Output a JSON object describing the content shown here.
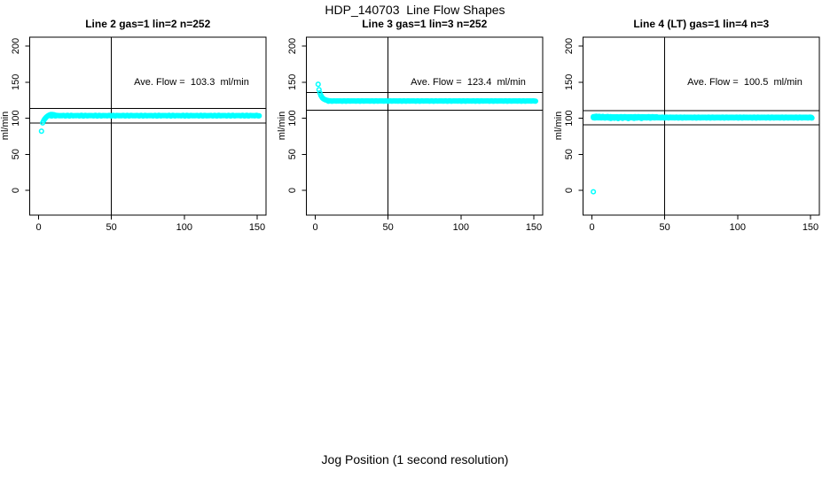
{
  "page": {
    "main_title": "HDP_140703  Line Flow Shapes",
    "x_axis_label": "Jog Position (1 second resolution)"
  },
  "colors": {
    "points": "#00FFFF",
    "axis": "#000000",
    "background": "#FFFFFF",
    "text": "#000000"
  },
  "chart_data": [
    {
      "type": "scatter",
      "title": "Line 2 gas=1 lin=2 n=252",
      "annotation": "Ave. Flow =  103.3  ml/min",
      "ave_flow": 103.3,
      "n": 252,
      "ylabel": "ml/min",
      "xticks": [
        0,
        50,
        100,
        150
      ],
      "yticks": [
        0,
        50,
        100,
        150,
        200
      ],
      "xlim": [
        -6,
        156
      ],
      "ylim": [
        -34,
        212
      ],
      "vline_x": 50,
      "hlines": [
        113.6,
        93.0
      ],
      "points": [
        [
          2,
          82
        ],
        [
          2.8,
          93.5
        ],
        [
          3.4,
          96.2
        ],
        [
          4,
          98.2
        ],
        [
          4.6,
          99.8
        ],
        [
          5.2,
          101.2
        ],
        [
          5.8,
          102.3
        ],
        [
          6.4,
          103.2
        ],
        [
          7,
          104
        ],
        [
          7.6,
          104.6
        ],
        [
          8.4,
          105.1
        ],
        [
          9.4,
          105.2
        ],
        [
          10.5,
          104.8
        ],
        [
          11.5,
          104.3
        ]
      ],
      "bands": [
        {
          "x_from": 8,
          "x_to": 151.5,
          "y": 103.5,
          "step": 0.6,
          "wobble": 0.9
        }
      ]
    },
    {
      "type": "scatter",
      "title": "Line 3 gas=1 lin=3 n=252",
      "annotation": "Ave. Flow =  123.4  ml/min",
      "ave_flow": 123.4,
      "n": 252,
      "ylabel": "ml/min",
      "xticks": [
        0,
        50,
        100,
        150
      ],
      "yticks": [
        0,
        50,
        100,
        150,
        200
      ],
      "xlim": [
        -6,
        156
      ],
      "ylim": [
        -34,
        212
      ],
      "vline_x": 50,
      "hlines": [
        135.7,
        111.1
      ],
      "points": [
        [
          2,
          147
        ],
        [
          2.6,
          139.5
        ],
        [
          3.2,
          135
        ],
        [
          3.8,
          131.8
        ],
        [
          4.4,
          129.6
        ],
        [
          5,
          128
        ],
        [
          5.6,
          126.9
        ],
        [
          6.2,
          126.1
        ],
        [
          7,
          125.4
        ],
        [
          7.8,
          124.9
        ],
        [
          8.6,
          124.5
        ],
        [
          9.5,
          124.2
        ]
      ],
      "bands": [
        {
          "x_from": 9,
          "x_to": 151.5,
          "y": 123.8,
          "step": 0.6,
          "wobble": 0.5
        }
      ]
    },
    {
      "type": "scatter",
      "title": "Line 4 (LT) gas=1 lin=4 n=3",
      "annotation": "Ave. Flow =  100.5  ml/min",
      "ave_flow": 100.5,
      "n": 3,
      "ylabel": "ml/min",
      "xticks": [
        0,
        50,
        100,
        150
      ],
      "yticks": [
        0,
        50,
        100,
        150,
        200
      ],
      "xlim": [
        -6,
        156
      ],
      "ylim": [
        -34,
        212
      ],
      "vline_x": 50,
      "hlines": [
        110.6,
        90.5
      ],
      "points": [
        [
          1,
          -2
        ],
        [
          1.5,
          101.2
        ],
        [
          2.2,
          102.4
        ],
        [
          3,
          102.7
        ],
        [
          4,
          102.2
        ],
        [
          5,
          102.6
        ],
        [
          6.2,
          102.1
        ],
        [
          7.5,
          102.4
        ],
        [
          9,
          101.9
        ],
        [
          11,
          102.2
        ],
        [
          13,
          99.6
        ],
        [
          15.5,
          99.9
        ],
        [
          18,
          99.4
        ],
        [
          21,
          99.8
        ],
        [
          25,
          99.5
        ],
        [
          29,
          99.8
        ],
        [
          34,
          99.6
        ],
        [
          40,
          100.0
        ]
      ],
      "bands": [
        {
          "x_from": 1,
          "x_to": 151,
          "y": 100.5,
          "step": 0.6,
          "wobble": 0.5
        },
        {
          "x_from": 1,
          "x_to": 45,
          "y": 101.8,
          "step": 0.7,
          "wobble": 0.6
        },
        {
          "x_from": 45,
          "x_to": 151,
          "y": 101.3,
          "step": 0.8,
          "wobble": 0.4
        }
      ]
    }
  ]
}
